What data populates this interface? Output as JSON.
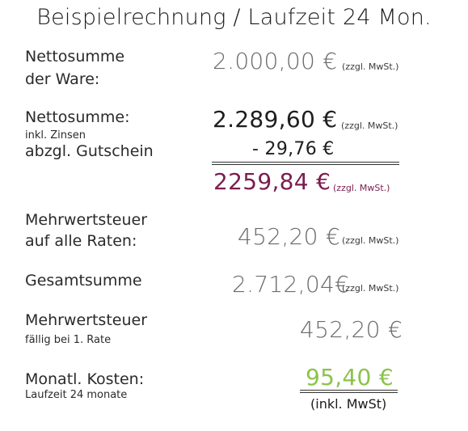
{
  "title": "Beispielrechnung / Laufzeit 24 Mon.",
  "rows": {
    "netto_ware": {
      "label_line1": "Nettosumme",
      "label_line2": "der Ware:",
      "amount": "2.000,00 €",
      "note": "(zzgl. MwSt.)"
    },
    "netto_zinsen": {
      "label": "Nettosumme:",
      "sublabel": "inkl. Zinsen",
      "amount": "2.289,60 €",
      "note": "(zzgl. MwSt.)"
    },
    "gutschein": {
      "label": "abzgl. Gutschein",
      "amount": "- 29,76 €"
    },
    "zwischensumme": {
      "amount": "2259,84 €",
      "note": "(zzgl. MwSt.)"
    },
    "mwst_raten": {
      "label_line1": "Mehrwertsteuer",
      "label_line2": "auf alle Raten:",
      "amount": "452,20 €",
      "note": "(zzgl. MwSt.)"
    },
    "gesamt": {
      "label": "Gesamtsumme",
      "amount": "2.712,04€",
      "note": "(zzgl. MwSt.)"
    },
    "mwst_rate1": {
      "label": "Mehrwertsteuer",
      "sublabel": "fällig bei 1. Rate",
      "amount": "452,20 €"
    },
    "monatl": {
      "label": "Monatl. Kosten:",
      "sublabel": "Laufzeit 24 monate",
      "amount": "95,40 €",
      "inkl": "(inkl. MwSt)"
    }
  },
  "colors": {
    "purple": "#7a1d4e",
    "green": "#8bc34a",
    "grey_amount": "#6b6b6b"
  }
}
